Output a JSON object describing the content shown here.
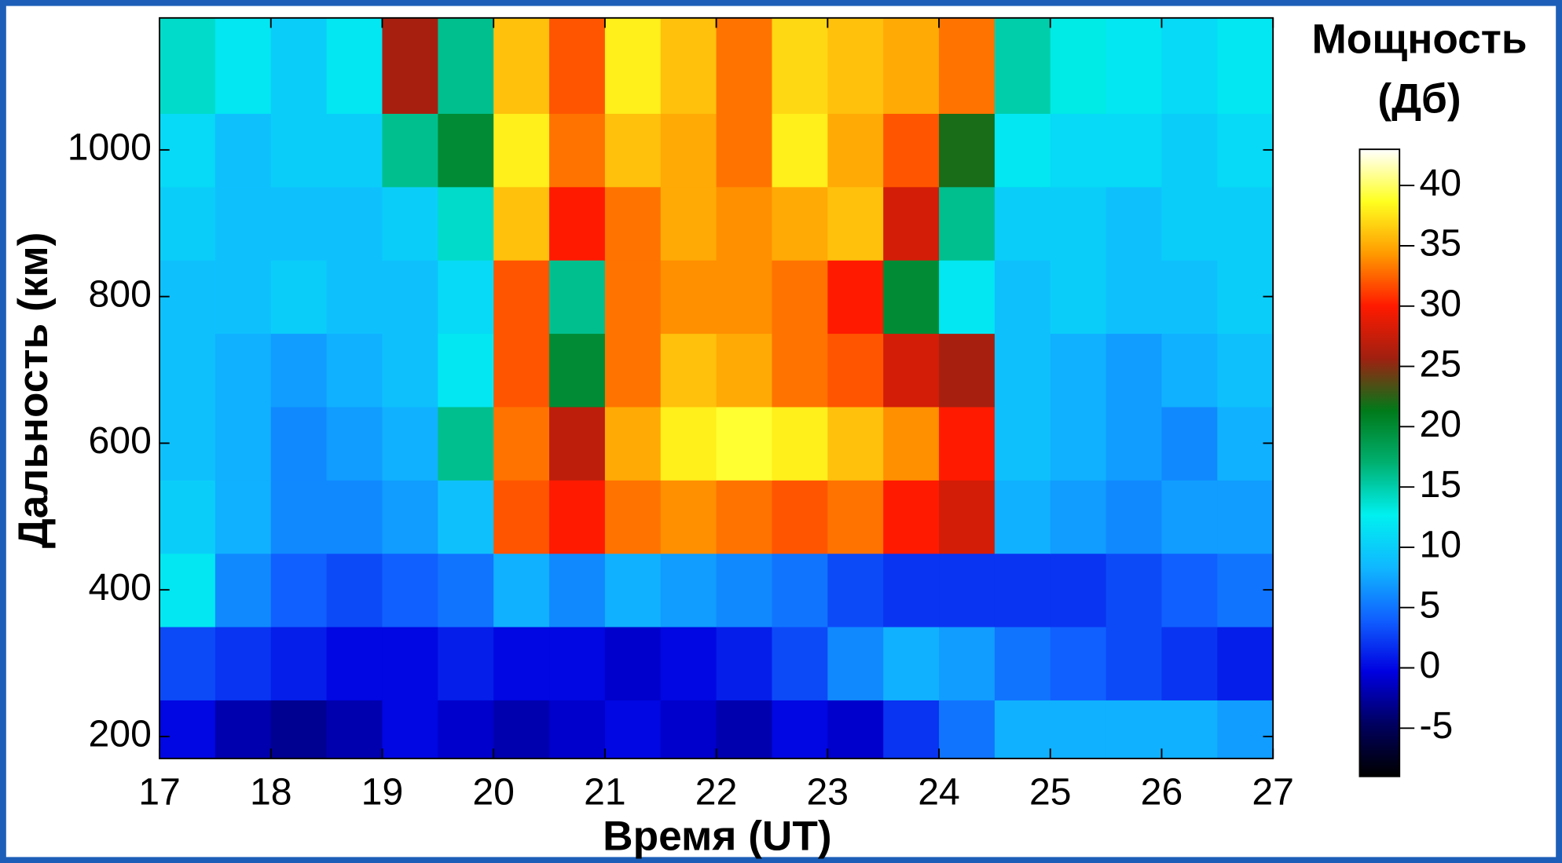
{
  "chart_data": {
    "type": "heatmap",
    "colorbar_title": [
      "Мощность",
      "(Дб)"
    ],
    "x_label": "Время (UT)",
    "y_label": "Дальность (км)",
    "x": [
      17.25,
      17.75,
      18.25,
      18.75,
      19.25,
      19.75,
      20.25,
      20.75,
      21.25,
      21.75,
      22.25,
      22.75,
      23.25,
      23.75,
      24.25,
      24.75,
      25.25,
      25.75,
      26.25,
      26.75
    ],
    "y": [
      200,
      300,
      400,
      500,
      600,
      700,
      800,
      900,
      1000,
      1100
    ],
    "z": [
      [
        0,
        -2,
        -3,
        -2,
        0,
        -1,
        -2,
        -1,
        0,
        -1,
        -2,
        0,
        -1,
        2,
        5,
        8,
        8,
        8,
        8,
        7
      ],
      [
        3,
        2,
        1,
        0,
        0,
        1,
        0,
        0,
        -1,
        0,
        1,
        3,
        6,
        8,
        7,
        5,
        4,
        3,
        2,
        1
      ],
      [
        12,
        6,
        4,
        3,
        4,
        5,
        8,
        6,
        8,
        7,
        6,
        5,
        3,
        2,
        2,
        2,
        2,
        3,
        4,
        5
      ],
      [
        10,
        8,
        6,
        6,
        7,
        9,
        32,
        30,
        33,
        34,
        33,
        32,
        33,
        30,
        28,
        8,
        7,
        6,
        7,
        7
      ],
      [
        9,
        8,
        6,
        7,
        8,
        16,
        33,
        27,
        35,
        38,
        39,
        38,
        36,
        34,
        30,
        9,
        8,
        7,
        6,
        8
      ],
      [
        9,
        8,
        7,
        8,
        9,
        12,
        32,
        20,
        33,
        36,
        35,
        33,
        32,
        28,
        26,
        9,
        8,
        7,
        8,
        9
      ],
      [
        9,
        9,
        10,
        9,
        9,
        11,
        32,
        16,
        33,
        34,
        34,
        33,
        30,
        20,
        12,
        9,
        10,
        9,
        9,
        10
      ],
      [
        10,
        9,
        9,
        9,
        10,
        14,
        36,
        30,
        33,
        35,
        34,
        35,
        36,
        28,
        16,
        10,
        10,
        9,
        10,
        10
      ],
      [
        11,
        9,
        10,
        10,
        16,
        20,
        38,
        33,
        36,
        35,
        33,
        38,
        35,
        32,
        22,
        12,
        11,
        11,
        10,
        11
      ],
      [
        14,
        12,
        10,
        12,
        26,
        16,
        36,
        32,
        38,
        36,
        33,
        37,
        36,
        35,
        33,
        15,
        13,
        12,
        11,
        12
      ]
    ],
    "xlim": [
      17,
      27
    ],
    "xticks": [
      17,
      18,
      19,
      20,
      21,
      22,
      23,
      24,
      25,
      26,
      27
    ],
    "ylim": [
      170,
      1180
    ],
    "yticks": [
      200,
      400,
      600,
      800,
      1000
    ],
    "clim": [
      -9,
      43
    ],
    "cticks": [
      -5,
      0,
      5,
      10,
      15,
      20,
      25,
      30,
      35,
      40
    ],
    "colors": [
      "#000000",
      "#000060",
      "#0000e0",
      "#1060ff",
      "#10b8ff",
      "#00f0f0",
      "#00b070",
      "#007a1a",
      "#a02010",
      "#ff1a00",
      "#ff9a00",
      "#ffff20",
      "#ffffff"
    ]
  }
}
